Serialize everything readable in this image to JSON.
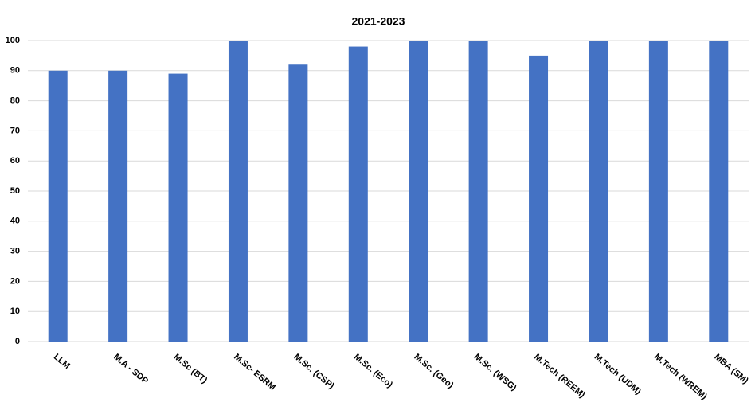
{
  "chart_data": {
    "type": "bar",
    "title": "2021-2023",
    "categories": [
      "LLM",
      "M.A - SDP",
      "M.Sc (BT)",
      "M.Sc- ESRM",
      "M.Sc. (CSP)",
      "M.Sc. (Eco)",
      "M.Sc. (Geo)",
      "M.Sc. (WSG)",
      "M.Tech (REEM)",
      "M.Tech (UDM)",
      "M.Tech (WREM)",
      "MBA (SM)"
    ],
    "values": [
      90,
      90,
      89,
      100,
      92,
      98,
      100,
      100,
      95,
      100,
      100,
      100
    ],
    "color": "#4472c4",
    "ylim": [
      0,
      100
    ],
    "yticks": [
      0,
      10,
      20,
      30,
      40,
      50,
      60,
      70,
      80,
      90,
      100
    ],
    "grid": true
  }
}
